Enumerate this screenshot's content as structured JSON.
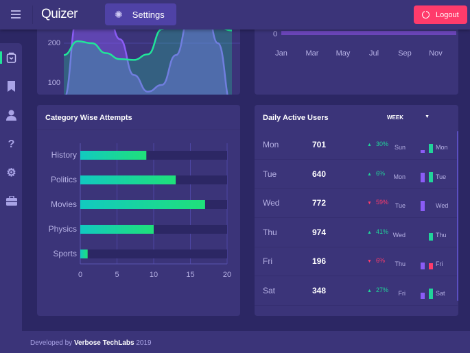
{
  "header": {
    "app_name": "Quizer",
    "settings_label": "Settings",
    "logout_label": "Logout"
  },
  "sidebar": {
    "items": [
      {
        "name": "shopping-bag",
        "icon": "bag-icon",
        "active": true
      },
      {
        "name": "bookmark",
        "icon": "bookmark-icon"
      },
      {
        "name": "user",
        "icon": "user-icon"
      },
      {
        "name": "help",
        "icon": "question-icon"
      },
      {
        "name": "settings",
        "icon": "gear-icon"
      },
      {
        "name": "briefcase",
        "icon": "briefcase-icon"
      }
    ]
  },
  "colors": {
    "accent_green": "#21e59a",
    "accent_purple": "#8b5cf6",
    "danger": "#ff3b6b",
    "card": "#3b3479",
    "background": "#2c2764"
  },
  "chart_data": [
    {
      "type": "area",
      "yticks": [
        "200",
        "100"
      ],
      "series": [
        {
          "color": "#21e59a",
          "values": [
            170,
            205,
            200,
            175,
            160,
            158,
            172,
            235,
            300,
            340,
            320,
            240,
            232
          ]
        },
        {
          "color": "#8b5cf6",
          "values": [
            60,
            270,
            340,
            300,
            210,
            120,
            78,
            95,
            170,
            270,
            330,
            200,
            40
          ]
        }
      ]
    },
    {
      "type": "bar",
      "ytick": "0",
      "categories": [
        "Jan",
        "Mar",
        "May",
        "Jul",
        "Sep",
        "Nov"
      ]
    },
    {
      "type": "bar",
      "orientation": "horizontal",
      "title": "Category Wise Attempts",
      "categories": [
        "History",
        "Politics",
        "Movies",
        "Physics",
        "Sports"
      ],
      "values": [
        9,
        13,
        17,
        10,
        1
      ],
      "xlim": [
        0,
        20
      ],
      "xticks": [
        "0",
        "5",
        "10",
        "15",
        "20"
      ],
      "grid": true
    }
  ],
  "daily": {
    "title": "Daily Active Users",
    "period": "WEEK",
    "rows": [
      {
        "day": "Mon",
        "value": "701",
        "dir": "up",
        "change": "30%",
        "prev": "Sun",
        "cur": "Mon",
        "prev_level": 0.25,
        "cur_level": 0.85,
        "cur_color": "#21d39a"
      },
      {
        "day": "Tue",
        "value": "640",
        "dir": "up",
        "change": "6%",
        "prev": "Mon",
        "cur": "Tue",
        "prev_level": 0.9,
        "cur_level": 1.0,
        "cur_color": "#21d39a"
      },
      {
        "day": "Wed",
        "value": "772",
        "dir": "down",
        "change": "59%",
        "prev": "Tue",
        "cur": "Wed",
        "prev_level": 1.0,
        "cur_level": 0,
        "cur_color": "#ff3b6b"
      },
      {
        "day": "Thu",
        "value": "974",
        "dir": "up",
        "change": "41%",
        "prev": "Wed",
        "cur": "Thu",
        "prev_level": 0,
        "cur_level": 0.7,
        "cur_color": "#21d39a"
      },
      {
        "day": "Fri",
        "value": "196",
        "dir": "down",
        "change": "6%",
        "prev": "Thu",
        "cur": "Fri",
        "prev_level": 0.7,
        "cur_level": 0.6,
        "cur_color": "#ff3b6b"
      },
      {
        "day": "Sat",
        "value": "348",
        "dir": "up",
        "change": "27%",
        "prev": "Fri",
        "cur": "Sat",
        "prev_level": 0.55,
        "cur_level": 1.0,
        "cur_color": "#21d39a"
      }
    ]
  },
  "footer": {
    "prefix": "Developed by",
    "company": "Verbose TechLabs",
    "year": "2019"
  }
}
